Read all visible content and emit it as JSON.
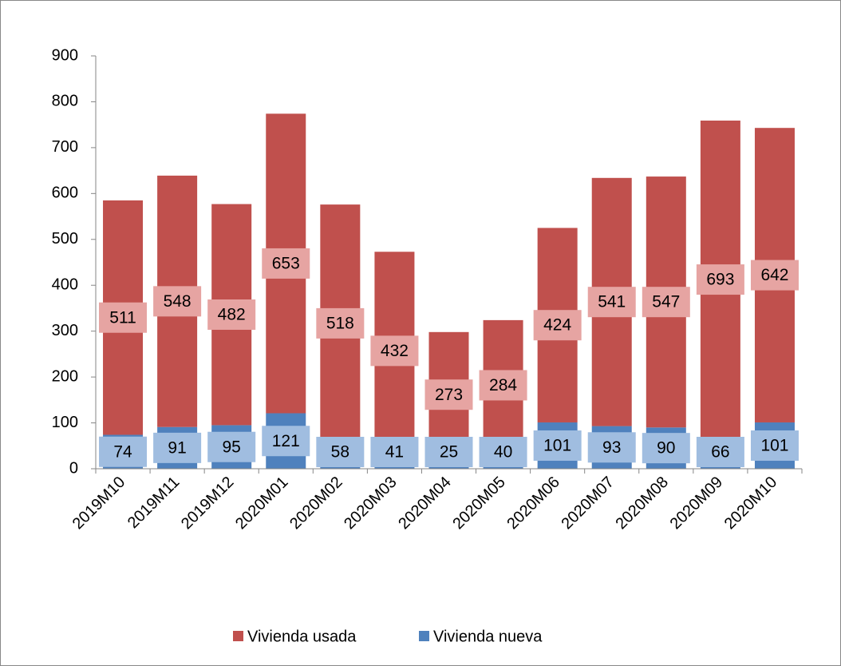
{
  "chart_data": {
    "type": "stacked-bar",
    "categories": [
      "2019M10",
      "2019M11",
      "2019M12",
      "2020M01",
      "2020M02",
      "2020M03",
      "2020M04",
      "2020M05",
      "2020M06",
      "2020M07",
      "2020M08",
      "2020M09",
      "2020M10"
    ],
    "series": [
      {
        "name": "Vivienda usada",
        "color": "#c0504d",
        "label_color": "#e6a4a2",
        "values": [
          511,
          548,
          482,
          653,
          518,
          432,
          273,
          284,
          424,
          541,
          547,
          693,
          642
        ]
      },
      {
        "name": "Vivienda nueva",
        "color": "#4f81bd",
        "label_color": "#a0bde0",
        "values": [
          74,
          91,
          95,
          121,
          58,
          41,
          25,
          40,
          101,
          93,
          90,
          66,
          101
        ]
      }
    ],
    "ylim": [
      0,
      900
    ],
    "yticks": [
      0,
      100,
      200,
      300,
      400,
      500,
      600,
      700,
      800,
      900
    ],
    "legend": "bottom"
  }
}
